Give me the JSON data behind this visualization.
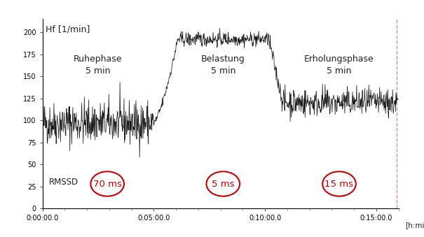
{
  "ylabel_inside": "Hf [1/min]",
  "xlabel": "[h:min:s]",
  "ylim": [
    0,
    215
  ],
  "yticks": [
    0,
    25,
    50,
    75,
    100,
    125,
    150,
    175,
    200
  ],
  "xtick_labels": [
    "0:00:00.0",
    "0:05:00.0",
    "0:10:00.0",
    "0:15:00.0"
  ],
  "xtick_positions": [
    0,
    300,
    600,
    900
  ],
  "total_seconds": 960,
  "resting_hr_mean": 97,
  "resting_hr_noise": 12,
  "exercise_hr_mean": 192,
  "exercise_hr_noise": 4,
  "recovery_hr_mean": 120,
  "recovery_hr_noise": 8,
  "line_color": "#1a1a1a",
  "bg_color": "#ffffff",
  "rmssd_color": "#cc0000",
  "ellipse_color": "#cc0000",
  "phase_label1": "Ruhephase\n5 min",
  "phase_label2": "Belastung\n5 min",
  "phase_label3": "Erholungsphase\n5 min",
  "rmssd_label": "RMSSD",
  "rmssd1": "70 ms",
  "rmssd2": "5 ms",
  "rmssd3": "15 ms",
  "border_color": "#cc88cc",
  "seed": 42
}
